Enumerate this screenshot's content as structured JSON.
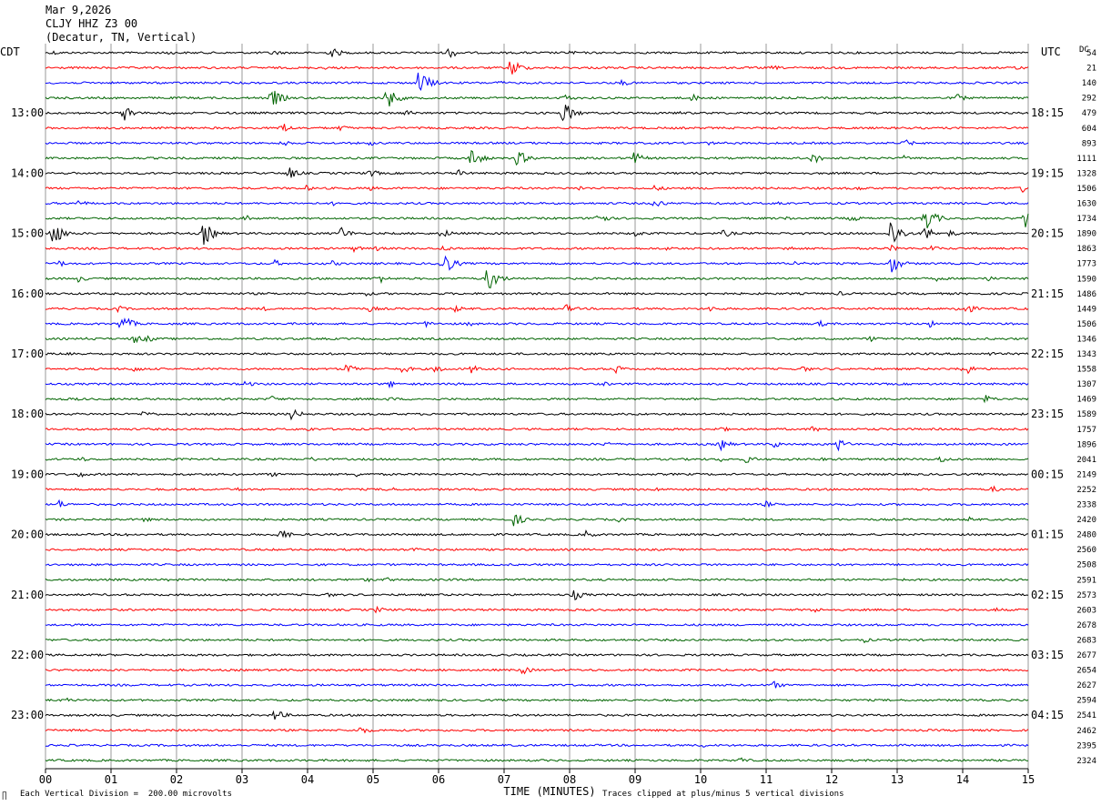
{
  "header": {
    "date": "Mar 9,2026",
    "station": "CLJY HHZ Z3 00",
    "location": "(Decatur, TN, Vertical)"
  },
  "left_axis_title": "CDT",
  "right_axis_title": "UTC",
  "dc_label": "DC",
  "xlabel": "TIME (MINUTES)",
  "footer_left": "Each Vertical Division =  200.00 microvolts",
  "footer_right": "Traces clipped at plus/minus 5 vertical divisions",
  "corner_mark": "∏",
  "chart_data": {
    "type": "seismogram",
    "x_ticks": [
      "00",
      "01",
      "02",
      "03",
      "04",
      "05",
      "06",
      "07",
      "08",
      "09",
      "10",
      "11",
      "12",
      "13",
      "14",
      "15"
    ],
    "xlim": [
      0,
      15
    ],
    "grid": "vertical lines at each minute",
    "trace_colors": [
      "#000000",
      "#ff0000",
      "#0000ff",
      "#006400"
    ],
    "left_time_labels": [
      {
        "trace": 4,
        "label": "13:00"
      },
      {
        "trace": 8,
        "label": "14:00"
      },
      {
        "trace": 12,
        "label": "15:00"
      },
      {
        "trace": 16,
        "label": "16:00"
      },
      {
        "trace": 20,
        "label": "17:00"
      },
      {
        "trace": 24,
        "label": "18:00"
      },
      {
        "trace": 28,
        "label": "19:00"
      },
      {
        "trace": 32,
        "label": "20:00"
      },
      {
        "trace": 36,
        "label": "21:00"
      },
      {
        "trace": 40,
        "label": "22:00"
      },
      {
        "trace": 44,
        "label": "23:00"
      }
    ],
    "right_time_labels": [
      {
        "trace": 4,
        "label": "18:15"
      },
      {
        "trace": 8,
        "label": "19:15"
      },
      {
        "trace": 12,
        "label": "20:15"
      },
      {
        "trace": 16,
        "label": "21:15"
      },
      {
        "trace": 20,
        "label": "22:15"
      },
      {
        "trace": 24,
        "label": "23:15"
      },
      {
        "trace": 28,
        "label": "00:15"
      },
      {
        "trace": 32,
        "label": "01:15"
      },
      {
        "trace": 36,
        "label": "02:15"
      },
      {
        "trace": 40,
        "label": "03:15"
      },
      {
        "trace": 44,
        "label": "04:15"
      }
    ],
    "dc_values": [
      54,
      21,
      140,
      292,
      479,
      604,
      893,
      1111,
      1328,
      1506,
      1630,
      1734,
      1890,
      1863,
      1773,
      1590,
      1486,
      1449,
      1506,
      1346,
      1343,
      1558,
      1307,
      1469,
      1589,
      1757,
      1896,
      2041,
      2149,
      2252,
      2338,
      2420,
      2480,
      2560,
      2508,
      2591,
      2573,
      2603,
      2678,
      2683,
      2677,
      2654,
      2627,
      2594,
      2541,
      2462,
      2395,
      2324
    ],
    "events": [
      {
        "trace": 0,
        "min": 0.1,
        "amp": 3
      },
      {
        "trace": 0,
        "min": 1.85,
        "amp": 3
      },
      {
        "trace": 0,
        "min": 3.45,
        "amp": 4
      },
      {
        "trace": 0,
        "min": 4.35,
        "amp": 7
      },
      {
        "trace": 0,
        "min": 6.15,
        "amp": 7
      },
      {
        "trace": 0,
        "min": 8.0,
        "amp": 3
      },
      {
        "trace": 1,
        "min": 4.2,
        "amp": 3
      },
      {
        "trace": 1,
        "min": 7.1,
        "amp": 12
      },
      {
        "trace": 1,
        "min": 11.1,
        "amp": 3
      },
      {
        "trace": 1,
        "min": 14.8,
        "amp": 3
      },
      {
        "trace": 2,
        "min": 5.7,
        "amp": 16
      },
      {
        "trace": 2,
        "min": 6.9,
        "amp": 3
      },
      {
        "trace": 2,
        "min": 8.8,
        "amp": 4
      },
      {
        "trace": 3,
        "min": 3.45,
        "amp": 12
      },
      {
        "trace": 3,
        "min": 5.2,
        "amp": 14
      },
      {
        "trace": 3,
        "min": 7.9,
        "amp": 5
      },
      {
        "trace": 3,
        "min": 9.85,
        "amp": 5
      },
      {
        "trace": 3,
        "min": 13.9,
        "amp": 5
      },
      {
        "trace": 4,
        "min": 1.2,
        "amp": 10
      },
      {
        "trace": 4,
        "min": 1.8,
        "amp": 3
      },
      {
        "trace": 4,
        "min": 5.5,
        "amp": 4
      },
      {
        "trace": 4,
        "min": 7.9,
        "amp": 14
      },
      {
        "trace": 4,
        "min": 9.6,
        "amp": 3
      },
      {
        "trace": 5,
        "min": 3.6,
        "amp": 7
      },
      {
        "trace": 5,
        "min": 4.5,
        "amp": 4
      },
      {
        "trace": 6,
        "min": 3.6,
        "amp": 4
      },
      {
        "trace": 6,
        "min": 4.95,
        "amp": 3
      },
      {
        "trace": 6,
        "min": 10.1,
        "amp": 3
      },
      {
        "trace": 6,
        "min": 13.1,
        "amp": 5
      },
      {
        "trace": 7,
        "min": 6.5,
        "amp": 12
      },
      {
        "trace": 7,
        "min": 7.2,
        "amp": 10
      },
      {
        "trace": 7,
        "min": 8.95,
        "amp": 9
      },
      {
        "trace": 7,
        "min": 11.7,
        "amp": 7
      },
      {
        "trace": 7,
        "min": 13.1,
        "amp": 3
      },
      {
        "trace": 8,
        "min": 3.7,
        "amp": 8
      },
      {
        "trace": 8,
        "min": 4.95,
        "amp": 5
      },
      {
        "trace": 8,
        "min": 6.3,
        "amp": 4
      },
      {
        "trace": 9,
        "min": 3.95,
        "amp": 4
      },
      {
        "trace": 9,
        "min": 4.95,
        "amp": 3
      },
      {
        "trace": 9,
        "min": 8.15,
        "amp": 3
      },
      {
        "trace": 9,
        "min": 9.3,
        "amp": 4
      },
      {
        "trace": 9,
        "min": 12.4,
        "amp": 3
      },
      {
        "trace": 9,
        "min": 14.9,
        "amp": 6
      },
      {
        "trace": 10,
        "min": 0.5,
        "amp": 4
      },
      {
        "trace": 10,
        "min": 4.4,
        "amp": 3
      },
      {
        "trace": 10,
        "min": 9.3,
        "amp": 6
      },
      {
        "trace": 10,
        "min": 11.2,
        "amp": 3
      },
      {
        "trace": 11,
        "min": 3.05,
        "amp": 4
      },
      {
        "trace": 11,
        "min": 8.4,
        "amp": 9
      },
      {
        "trace": 11,
        "min": 11.3,
        "amp": 3
      },
      {
        "trace": 11,
        "min": 12.3,
        "amp": 5
      },
      {
        "trace": 11,
        "min": 13.4,
        "amp": 18
      },
      {
        "trace": 11,
        "min": 14.95,
        "amp": 14
      },
      {
        "trace": 12,
        "min": 0.1,
        "amp": 16
      },
      {
        "trace": 12,
        "min": 2.4,
        "amp": 15
      },
      {
        "trace": 12,
        "min": 4.5,
        "amp": 8
      },
      {
        "trace": 12,
        "min": 6.05,
        "amp": 6
      },
      {
        "trace": 12,
        "min": 9.0,
        "amp": 4
      },
      {
        "trace": 12,
        "min": 10.35,
        "amp": 5
      },
      {
        "trace": 12,
        "min": 12.9,
        "amp": 18
      },
      {
        "trace": 12,
        "min": 13.4,
        "amp": 10
      },
      {
        "trace": 12,
        "min": 13.8,
        "amp": 4
      },
      {
        "trace": 13,
        "min": 4.7,
        "amp": 4
      },
      {
        "trace": 13,
        "min": 5.05,
        "amp": 3
      },
      {
        "trace": 13,
        "min": 6.05,
        "amp": 4
      },
      {
        "trace": 13,
        "min": 9.5,
        "amp": 3
      },
      {
        "trace": 13,
        "min": 11.3,
        "amp": 4
      },
      {
        "trace": 13,
        "min": 12.9,
        "amp": 4
      },
      {
        "trace": 13,
        "min": 13.5,
        "amp": 4
      },
      {
        "trace": 14,
        "min": 0.2,
        "amp": 4
      },
      {
        "trace": 14,
        "min": 3.5,
        "amp": 4
      },
      {
        "trace": 14,
        "min": 4.35,
        "amp": 4
      },
      {
        "trace": 14,
        "min": 6.05,
        "amp": 16
      },
      {
        "trace": 14,
        "min": 11.45,
        "amp": 4
      },
      {
        "trace": 14,
        "min": 12.9,
        "amp": 12
      },
      {
        "trace": 15,
        "min": 0.5,
        "amp": 4
      },
      {
        "trace": 15,
        "min": 5.05,
        "amp": 7
      },
      {
        "trace": 15,
        "min": 6.75,
        "amp": 16
      },
      {
        "trace": 15,
        "min": 13.6,
        "amp": 3
      },
      {
        "trace": 15,
        "min": 14.35,
        "amp": 4
      },
      {
        "trace": 16,
        "min": 4.9,
        "amp": 3
      },
      {
        "trace": 16,
        "min": 10.1,
        "amp": 3
      },
      {
        "trace": 16,
        "min": 12.1,
        "amp": 3
      },
      {
        "trace": 17,
        "min": 1.1,
        "amp": 4
      },
      {
        "trace": 17,
        "min": 3.3,
        "amp": 3
      },
      {
        "trace": 17,
        "min": 4.95,
        "amp": 4
      },
      {
        "trace": 17,
        "min": 6.25,
        "amp": 4
      },
      {
        "trace": 17,
        "min": 7.95,
        "amp": 5
      },
      {
        "trace": 17,
        "min": 10.15,
        "amp": 4
      },
      {
        "trace": 17,
        "min": 13.9,
        "amp": 4
      },
      {
        "trace": 17,
        "min": 14.05,
        "amp": 6
      },
      {
        "trace": 18,
        "min": 1.15,
        "amp": 12
      },
      {
        "trace": 18,
        "min": 5.8,
        "amp": 4
      },
      {
        "trace": 18,
        "min": 6.45,
        "amp": 3
      },
      {
        "trace": 18,
        "min": 11.8,
        "amp": 4
      },
      {
        "trace": 18,
        "min": 13.5,
        "amp": 4
      },
      {
        "trace": 19,
        "min": 0.65,
        "amp": 3
      },
      {
        "trace": 19,
        "min": 1.35,
        "amp": 6
      },
      {
        "trace": 19,
        "min": 1.55,
        "amp": 4
      },
      {
        "trace": 19,
        "min": 12.6,
        "amp": 4
      },
      {
        "trace": 20,
        "min": 0.35,
        "amp": 4
      },
      {
        "trace": 20,
        "min": 14.4,
        "amp": 3
      },
      {
        "trace": 21,
        "min": 1.35,
        "amp": 4
      },
      {
        "trace": 21,
        "min": 4.6,
        "amp": 7
      },
      {
        "trace": 21,
        "min": 5.45,
        "amp": 5
      },
      {
        "trace": 21,
        "min": 5.95,
        "amp": 5
      },
      {
        "trace": 21,
        "min": 6.5,
        "amp": 5
      },
      {
        "trace": 21,
        "min": 8.7,
        "amp": 5
      },
      {
        "trace": 21,
        "min": 11.55,
        "amp": 4
      },
      {
        "trace": 21,
        "min": 14.0,
        "amp": 9
      },
      {
        "trace": 22,
        "min": 3.05,
        "amp": 4
      },
      {
        "trace": 22,
        "min": 5.25,
        "amp": 4
      },
      {
        "trace": 22,
        "min": 6.3,
        "amp": 3
      },
      {
        "trace": 22,
        "min": 8.5,
        "amp": 3
      },
      {
        "trace": 23,
        "min": 0.4,
        "amp": 3
      },
      {
        "trace": 23,
        "min": 3.45,
        "amp": 4
      },
      {
        "trace": 23,
        "min": 5.25,
        "amp": 3
      },
      {
        "trace": 23,
        "min": 14.35,
        "amp": 5
      },
      {
        "trace": 24,
        "min": 1.5,
        "amp": 5
      },
      {
        "trace": 24,
        "min": 2.95,
        "amp": 6
      },
      {
        "trace": 24,
        "min": 3.75,
        "amp": 7
      },
      {
        "trace": 25,
        "min": 4.0,
        "amp": 3
      },
      {
        "trace": 25,
        "min": 10.25,
        "amp": 5
      },
      {
        "trace": 25,
        "min": 11.7,
        "amp": 4
      },
      {
        "trace": 26,
        "min": 8.55,
        "amp": 4
      },
      {
        "trace": 26,
        "min": 10.3,
        "amp": 7
      },
      {
        "trace": 26,
        "min": 11.1,
        "amp": 5
      },
      {
        "trace": 26,
        "min": 12.1,
        "amp": 7
      },
      {
        "trace": 27,
        "min": 0.5,
        "amp": 4
      },
      {
        "trace": 27,
        "min": 4.05,
        "amp": 3
      },
      {
        "trace": 27,
        "min": 10.3,
        "amp": 3
      },
      {
        "trace": 27,
        "min": 10.7,
        "amp": 5
      },
      {
        "trace": 27,
        "min": 11.8,
        "amp": 3
      },
      {
        "trace": 27,
        "min": 13.65,
        "amp": 5
      },
      {
        "trace": 28,
        "min": 0.5,
        "amp": 4
      },
      {
        "trace": 28,
        "min": 3.45,
        "amp": 3
      },
      {
        "trace": 28,
        "min": 4.75,
        "amp": 3
      },
      {
        "trace": 29,
        "min": 2.95,
        "amp": 3
      },
      {
        "trace": 29,
        "min": 5.2,
        "amp": 4
      },
      {
        "trace": 29,
        "min": 9.3,
        "amp": 3
      },
      {
        "trace": 29,
        "min": 14.45,
        "amp": 4
      },
      {
        "trace": 30,
        "min": 0.2,
        "amp": 5
      },
      {
        "trace": 30,
        "min": 11.0,
        "amp": 4
      },
      {
        "trace": 31,
        "min": 1.5,
        "amp": 3
      },
      {
        "trace": 31,
        "min": 7.15,
        "amp": 8
      },
      {
        "trace": 31,
        "min": 8.75,
        "amp": 3
      },
      {
        "trace": 31,
        "min": 14.1,
        "amp": 3
      },
      {
        "trace": 32,
        "min": 1.2,
        "amp": 3
      },
      {
        "trace": 32,
        "min": 3.55,
        "amp": 8
      },
      {
        "trace": 32,
        "min": 8.25,
        "amp": 5
      },
      {
        "trace": 33,
        "min": 2.0,
        "amp": 3
      },
      {
        "trace": 33,
        "min": 5.6,
        "amp": 3
      },
      {
        "trace": 35,
        "min": 1.9,
        "amp": 3
      },
      {
        "trace": 35,
        "min": 4.9,
        "amp": 3
      },
      {
        "trace": 35,
        "min": 5.2,
        "amp": 3
      },
      {
        "trace": 35,
        "min": 13.0,
        "amp": 3
      },
      {
        "trace": 36,
        "min": 4.3,
        "amp": 3
      },
      {
        "trace": 36,
        "min": 8.05,
        "amp": 7
      },
      {
        "trace": 37,
        "min": 5.05,
        "amp": 4
      },
      {
        "trace": 37,
        "min": 11.7,
        "amp": 4
      },
      {
        "trace": 37,
        "min": 14.5,
        "amp": 3
      },
      {
        "trace": 39,
        "min": 12.5,
        "amp": 3
      },
      {
        "trace": 41,
        "min": 7.25,
        "amp": 6
      },
      {
        "trace": 42,
        "min": 11.1,
        "amp": 5
      },
      {
        "trace": 43,
        "min": 0.3,
        "amp": 3
      },
      {
        "trace": 44,
        "min": 3.5,
        "amp": 7
      },
      {
        "trace": 45,
        "min": 4.8,
        "amp": 5
      },
      {
        "trace": 46,
        "min": 10.0,
        "amp": 3
      },
      {
        "trace": 47,
        "min": 10.6,
        "amp": 4
      }
    ]
  }
}
